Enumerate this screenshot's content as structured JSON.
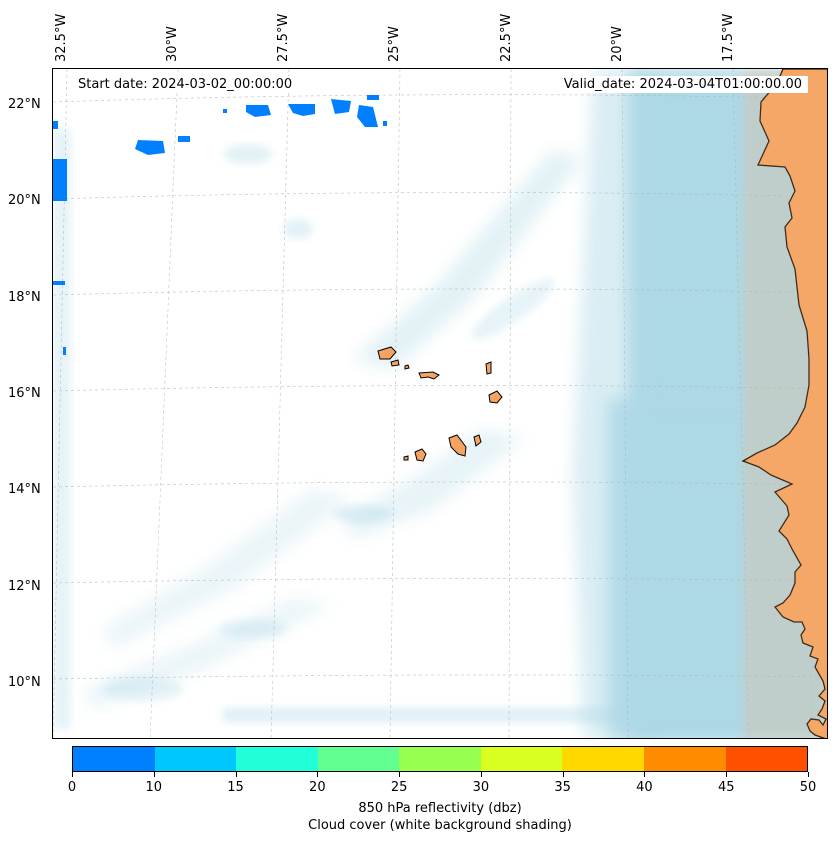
{
  "map": {
    "start_date": "Start date: 2024-03-02_00:00:00",
    "valid_date": "Valid_date: 2024-03-04T01:00:00.00",
    "lon_labels": [
      "32.5°W",
      "30°W",
      "27.5°W",
      "25°W",
      "22.5°W",
      "20°W",
      "17.5°W"
    ],
    "lat_labels": [
      "22°N",
      "20°N",
      "18°N",
      "16°N",
      "14°N",
      "12°N",
      "10°N"
    ],
    "colors": {
      "land": "#f4a460",
      "cloud": "#add8e6",
      "coast": "#000000",
      "grid": "#b0b0b0"
    }
  },
  "colorbar": {
    "ticks": [
      "0",
      "10",
      "15",
      "20",
      "25",
      "30",
      "35",
      "40",
      "45",
      "50"
    ],
    "colors": [
      "#0080ff",
      "#00c8ff",
      "#20ffd8",
      "#60ff90",
      "#96ff50",
      "#d8ff20",
      "#ffd800",
      "#ff8c00",
      "#ff5000"
    ],
    "label_line1": "850 hPa reflectivity (dbz)",
    "label_line2": "Cloud cover (white background shading)"
  }
}
